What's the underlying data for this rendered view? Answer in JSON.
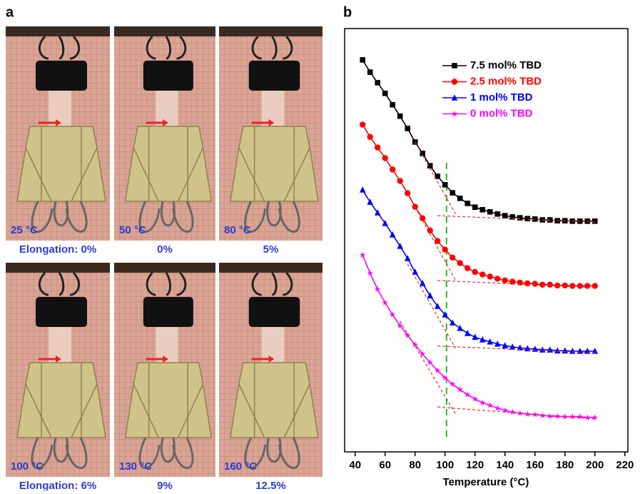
{
  "panel_a": {
    "label": "a",
    "photos": [
      {
        "temperature": "25 °C",
        "elongation": "Elongation: 0%"
      },
      {
        "temperature": "50 °C",
        "elongation": "0%"
      },
      {
        "temperature": "80 °C",
        "elongation": "5%"
      },
      {
        "temperature": "100 °C",
        "elongation": "Elongation: 6%"
      },
      {
        "temperature": "130 °C",
        "elongation": "9%"
      },
      {
        "temperature": "160 °C",
        "elongation": "12.5%"
      }
    ]
  },
  "chart_data": {
    "type": "line",
    "panel_label": "b",
    "x_label": "Temperature (°C)",
    "x": [
      45,
      50,
      55,
      60,
      65,
      70,
      75,
      80,
      85,
      90,
      95,
      100,
      105,
      110,
      115,
      120,
      125,
      130,
      135,
      140,
      145,
      150,
      155,
      160,
      165,
      170,
      175,
      180,
      185,
      190,
      195,
      200
    ],
    "series": [
      {
        "name": "7.5 mol% TBD",
        "color": "#000000",
        "marker": "square",
        "values": [
          92.6,
          89.7,
          87.2,
          84.7,
          82.0,
          79.3,
          76.4,
          73.2,
          70.5,
          67.6,
          65.1,
          63.1,
          61.2,
          59.9,
          58.7,
          57.8,
          57.2,
          56.7,
          56.2,
          55.8,
          55.5,
          55.3,
          55.1,
          55.0,
          54.8,
          54.8,
          54.6,
          54.6,
          54.5,
          54.5,
          54.5,
          54.5
        ]
      },
      {
        "name": "2.5 mol% TBD",
        "color": "#ff0000",
        "marker": "circle",
        "values": [
          77.3,
          74.4,
          71.9,
          69.4,
          66.7,
          64.0,
          61.1,
          57.9,
          55.2,
          52.3,
          49.8,
          47.8,
          45.9,
          44.6,
          43.4,
          42.5,
          41.9,
          41.4,
          40.9,
          40.5,
          40.2,
          40.0,
          39.8,
          39.7,
          39.5,
          39.5,
          39.3,
          39.3,
          39.2,
          39.2,
          39.2,
          39.2
        ]
      },
      {
        "name": "1 mol% TBD",
        "color": "#0000ff",
        "marker": "triangle",
        "values": [
          61.9,
          59.0,
          56.5,
          54.0,
          51.3,
          48.6,
          45.7,
          42.5,
          39.8,
          36.9,
          34.4,
          32.4,
          30.5,
          29.2,
          28.0,
          27.1,
          26.5,
          26.0,
          25.5,
          25.1,
          24.8,
          24.6,
          24.4,
          24.3,
          24.1,
          24.1,
          23.9,
          23.9,
          23.8,
          23.8,
          23.8,
          23.8
        ]
      },
      {
        "name": "0 mol% TBD",
        "color": "#ff00ff",
        "marker": "star",
        "values": [
          46.5,
          42.2,
          38.4,
          35.2,
          32.4,
          29.8,
          27.5,
          25.3,
          23.1,
          21.1,
          19.2,
          17.5,
          16.0,
          14.7,
          13.5,
          12.5,
          11.6,
          11.0,
          10.3,
          9.8,
          9.4,
          9.1,
          8.9,
          8.8,
          8.6,
          8.4,
          8.4,
          8.3,
          8.3,
          8.3,
          8.1,
          8.1
        ]
      }
    ],
    "tangents": [
      {
        "x": [
          80,
          107
        ],
        "values": [
          73.2,
          56.2
        ]
      },
      {
        "x": [
          95,
          200
        ],
        "values": [
          55.8,
          54.3
        ]
      },
      {
        "x": [
          80,
          107
        ],
        "values": [
          57.8,
          40.6
        ]
      },
      {
        "x": [
          95,
          200
        ],
        "values": [
          40.5,
          38.8
        ]
      },
      {
        "x": [
          75,
          107
        ],
        "values": [
          44.4,
          24.5
        ]
      },
      {
        "x": [
          95,
          200
        ],
        "values": [
          25.0,
          23.4
        ]
      },
      {
        "x": [
          70,
          107
        ],
        "values": [
          30.9,
          9.0
        ]
      },
      {
        "x": [
          95,
          200
        ],
        "values": [
          10.6,
          7.8
        ]
      }
    ],
    "tangent_color": "#e03030",
    "vline_x": 101,
    "vline_color": "#22bb22",
    "xlim": [
      33,
      222
    ],
    "xticks": [
      40,
      60,
      80,
      100,
      120,
      140,
      160,
      180,
      200,
      220
    ],
    "ylim": [
      0,
      100
    ]
  }
}
